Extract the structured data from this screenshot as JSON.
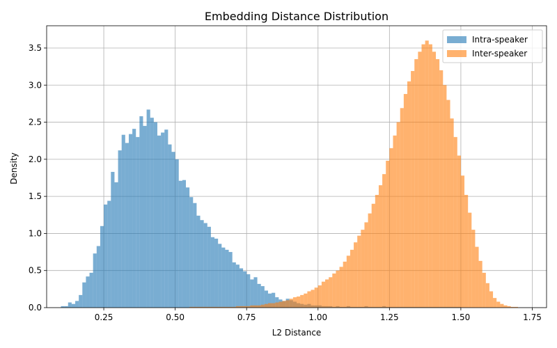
{
  "chart_data": {
    "type": "histogram",
    "title": "Embedding Distance Distribution",
    "xlabel": "L2 Distance",
    "ylabel": "Density",
    "xlim": [
      0.05,
      1.8
    ],
    "ylim": [
      0,
      3.8
    ],
    "xticks": [
      0.25,
      0.5,
      0.75,
      1.0,
      1.25,
      1.5,
      1.75
    ],
    "xtick_labels": [
      "0.25",
      "0.50",
      "0.75",
      "1.00",
      "1.25",
      "1.50",
      "1.75"
    ],
    "yticks": [
      0.0,
      0.5,
      1.0,
      1.5,
      2.0,
      2.5,
      3.0,
      3.5
    ],
    "ytick_labels": [
      "0.0",
      "0.5",
      "1.0",
      "1.5",
      "2.0",
      "2.5",
      "3.0",
      "3.5"
    ],
    "grid": true,
    "legend_position": "top-right",
    "bin_width": 0.0125,
    "series": [
      {
        "name": "Intra-speaker",
        "color": "#1f77b4",
        "opacity": 0.6,
        "bin_start": 0.1,
        "values": [
          0.02,
          0.02,
          0.07,
          0.05,
          0.09,
          0.17,
          0.34,
          0.42,
          0.47,
          0.73,
          0.83,
          1.1,
          1.39,
          1.44,
          1.83,
          1.69,
          2.12,
          2.33,
          2.22,
          2.34,
          2.41,
          2.3,
          2.58,
          2.45,
          2.67,
          2.56,
          2.5,
          2.32,
          2.36,
          2.4,
          2.2,
          2.1,
          2.0,
          1.71,
          1.72,
          1.62,
          1.49,
          1.41,
          1.24,
          1.18,
          1.14,
          1.09,
          0.95,
          0.93,
          0.86,
          0.81,
          0.78,
          0.75,
          0.61,
          0.58,
          0.53,
          0.49,
          0.45,
          0.38,
          0.41,
          0.32,
          0.29,
          0.23,
          0.19,
          0.2,
          0.14,
          0.11,
          0.09,
          0.12,
          0.1,
          0.08,
          0.06,
          0.05,
          0.04,
          0.05,
          0.03,
          0.03,
          0.03,
          0.02,
          0.02,
          0.02,
          0.01,
          0.02,
          0.01,
          0.01,
          0.02,
          0.01,
          0.01,
          0.01,
          0.01,
          0.02,
          0.01,
          0.01,
          0.01,
          0.01,
          0.02,
          0.01,
          0.01,
          0.01,
          0.01,
          0.01,
          0.01,
          0.01,
          0.01,
          0.01,
          0.01,
          0.01,
          0.01,
          0.01,
          0.01,
          0.01,
          0.01,
          0.01,
          0.01,
          0.01,
          0.01,
          0.01
        ]
      },
      {
        "name": "Inter-speaker",
        "color": "#ff7f0e",
        "opacity": 0.6,
        "bin_start": 0.55,
        "values": [
          0.01,
          0.01,
          0.01,
          0.01,
          0.01,
          0.01,
          0.01,
          0.01,
          0.01,
          0.01,
          0.01,
          0.01,
          0.01,
          0.02,
          0.02,
          0.02,
          0.02,
          0.03,
          0.03,
          0.03,
          0.04,
          0.05,
          0.06,
          0.06,
          0.07,
          0.08,
          0.09,
          0.1,
          0.12,
          0.14,
          0.15,
          0.17,
          0.19,
          0.22,
          0.24,
          0.27,
          0.3,
          0.35,
          0.38,
          0.41,
          0.46,
          0.5,
          0.55,
          0.62,
          0.7,
          0.78,
          0.88,
          0.97,
          1.05,
          1.15,
          1.27,
          1.4,
          1.52,
          1.65,
          1.8,
          1.98,
          2.15,
          2.32,
          2.5,
          2.69,
          2.88,
          3.05,
          3.19,
          3.35,
          3.45,
          3.55,
          3.6,
          3.55,
          3.45,
          3.35,
          3.2,
          3.0,
          2.8,
          2.55,
          2.3,
          2.05,
          1.78,
          1.52,
          1.28,
          1.05,
          0.82,
          0.63,
          0.47,
          0.33,
          0.22,
          0.13,
          0.08,
          0.05,
          0.03,
          0.02,
          0.01,
          0.01
        ]
      }
    ]
  }
}
